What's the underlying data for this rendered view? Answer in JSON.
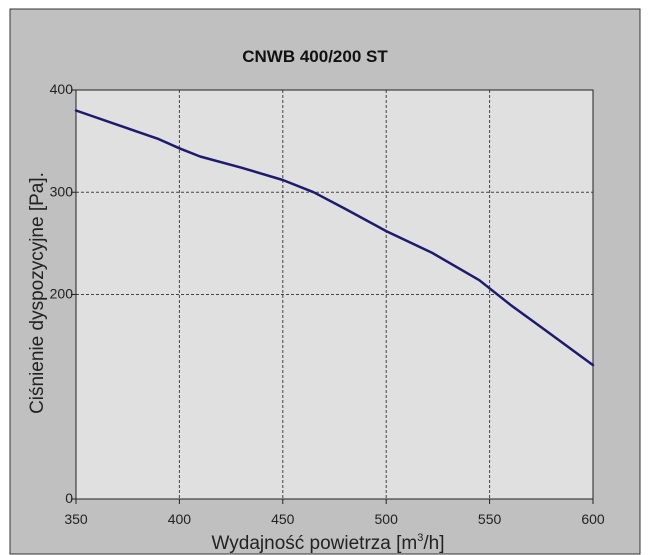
{
  "chart_data": {
    "type": "line",
    "title": "CNWB 400/200 ST",
    "xlabel_prefix": "Wydajność powietrza [m",
    "xlabel_sup": "3",
    "xlabel_suffix": "/h]",
    "ylabel": "Ciśnienie dyspozycyjne [Pa].",
    "xlim": [
      350,
      600
    ],
    "ylim": [
      0,
      400
    ],
    "x_ticks": [
      350,
      400,
      450,
      500,
      550,
      600
    ],
    "y_ticks": [
      0,
      200,
      300,
      400
    ],
    "grid_x": [
      400,
      450,
      500,
      550
    ],
    "grid_y": [
      200,
      300
    ],
    "grid": true,
    "legend": "none",
    "colors": {
      "outer_background": "#c0c0c0",
      "plot_background": "#e0e0e0",
      "line": "#1f1a6e",
      "grid": "#444444",
      "axis": "#222222"
    },
    "series": [
      {
        "x": [
          350,
          370,
          390,
          400,
          410,
          430,
          450,
          465,
          480,
          500,
          522,
          545,
          560,
          577,
          600
        ],
        "y": [
          380,
          366,
          352,
          343,
          335,
          324,
          312,
          300,
          284,
          262,
          241,
          214,
          190,
          165,
          131
        ]
      }
    ]
  }
}
